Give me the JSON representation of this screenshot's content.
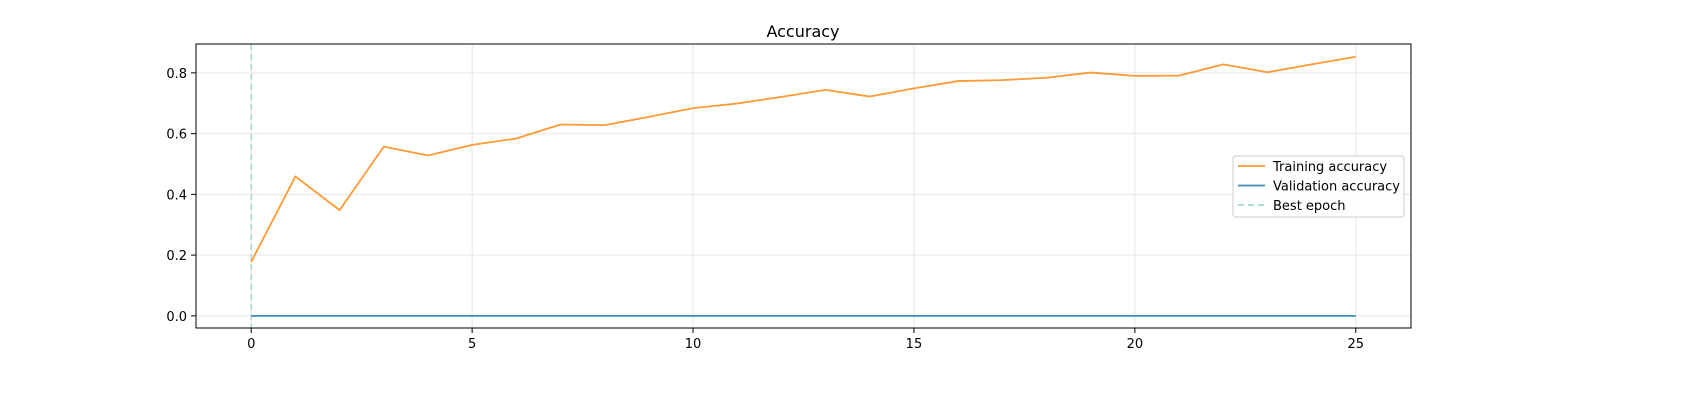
{
  "chart_data": {
    "type": "line",
    "title": "Accuracy",
    "xlabel": "",
    "ylabel": "",
    "xlim": [
      -1.25,
      26.25
    ],
    "ylim": [
      -0.04,
      0.895
    ],
    "xticks": [
      0,
      5,
      10,
      15,
      20,
      25
    ],
    "yticks": [
      0.0,
      0.2,
      0.4,
      0.6,
      0.8
    ],
    "xtick_labels": [
      "0",
      "5",
      "10",
      "15",
      "20",
      "25"
    ],
    "ytick_labels": [
      "0.0",
      "0.2",
      "0.4",
      "0.6",
      "0.8"
    ],
    "grid": true,
    "legend_position": "center-right",
    "x": [
      0,
      1,
      2,
      3,
      4,
      5,
      6,
      7,
      8,
      9,
      10,
      11,
      12,
      13,
      14,
      15,
      16,
      17,
      18,
      19,
      20,
      21,
      22,
      23,
      24,
      25
    ],
    "series": [
      {
        "name": "Training accuracy",
        "color": "#ff9933",
        "values": [
          0.178,
          0.459,
          0.348,
          0.557,
          0.528,
          0.563,
          0.584,
          0.63,
          0.628,
          0.655,
          0.684,
          0.699,
          0.721,
          0.744,
          0.722,
          0.749,
          0.773,
          0.776,
          0.784,
          0.801,
          0.79,
          0.791,
          0.828,
          0.802,
          0.828,
          0.853
        ]
      },
      {
        "name": "Validation accuracy",
        "color": "#3a8fb7",
        "values": [
          0,
          0,
          0,
          0,
          0,
          0,
          0,
          0,
          0,
          0,
          0,
          0,
          0,
          0,
          0,
          0,
          0,
          0,
          0,
          0,
          0,
          0,
          0,
          0,
          0,
          0
        ]
      }
    ],
    "best_epoch": {
      "name": "Best epoch",
      "x": 0,
      "color": "#a8d8d0"
    }
  }
}
